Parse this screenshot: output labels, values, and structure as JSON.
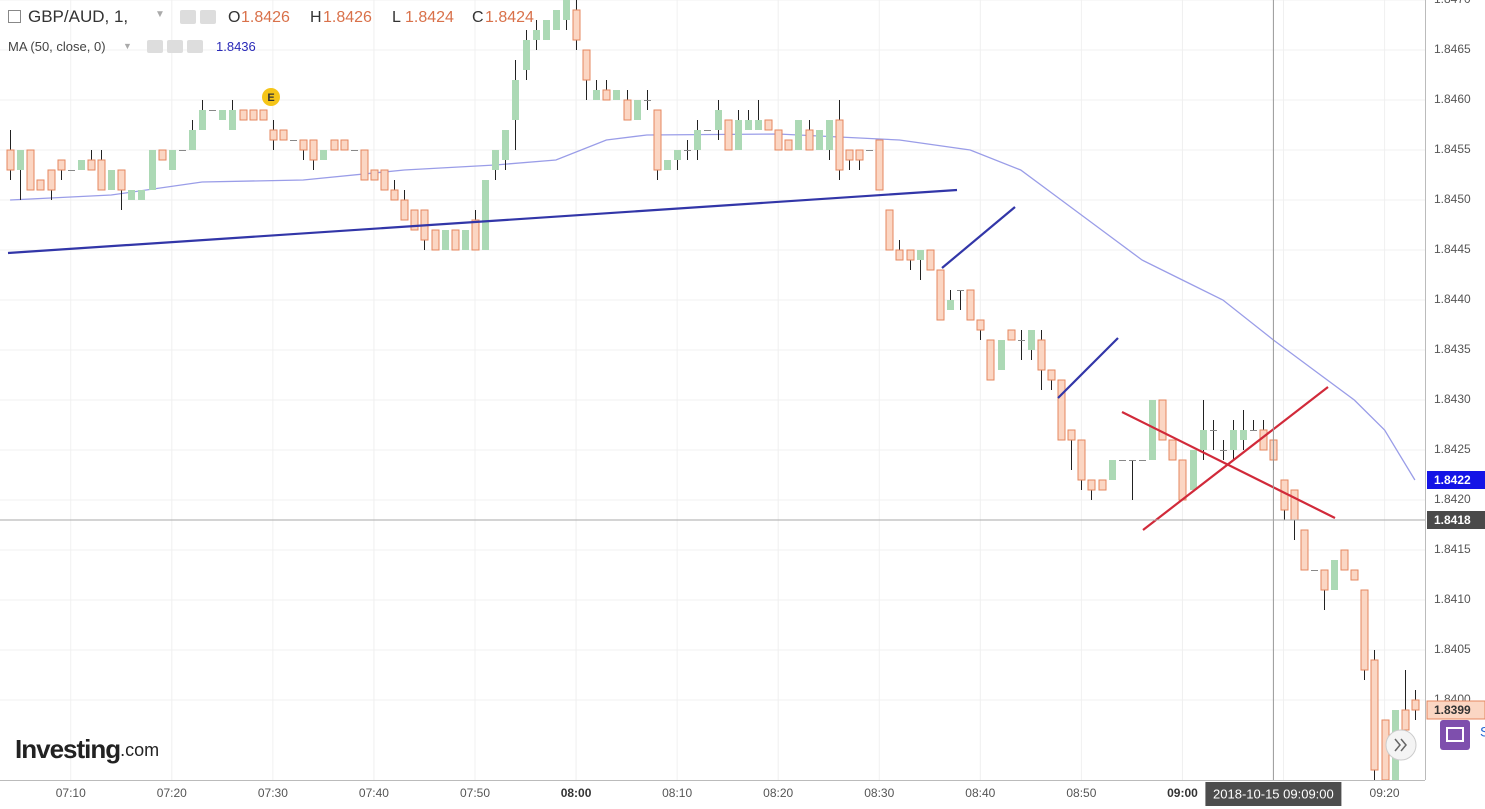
{
  "header": {
    "symbol": "GBP/AUD, 1,",
    "ohlc": [
      {
        "label": "O",
        "value": 1.8426
      },
      {
        "label": "H",
        "value": 1.8426
      },
      {
        "label": "L",
        "value": 1.8424
      },
      {
        "label": "C",
        "value": 1.8424
      }
    ],
    "event_marker": "E",
    "watermark": {
      "brand": "Investing",
      "suffix": ".com"
    },
    "widget_label": "S"
  },
  "chart_data": {
    "type": "candlestick",
    "x": [
      "07:04",
      "07:05",
      "07:06",
      "07:07",
      "07:08",
      "07:09",
      "07:10",
      "07:11",
      "07:12",
      "07:13",
      "07:14",
      "07:15",
      "07:16",
      "07:17",
      "07:18",
      "07:19",
      "07:20",
      "07:21",
      "07:22",
      "07:23",
      "07:24",
      "07:25",
      "07:26",
      "07:27",
      "07:28",
      "07:29",
      "07:30",
      "07:31",
      "07:32",
      "07:33",
      "07:34",
      "07:35",
      "07:36",
      "07:37",
      "07:38",
      "07:39",
      "07:40",
      "07:41",
      "07:42",
      "07:43",
      "07:44",
      "07:45",
      "07:46",
      "07:47",
      "07:48",
      "07:49",
      "07:50",
      "07:51",
      "07:52",
      "07:53",
      "07:54",
      "07:55",
      "07:56",
      "07:57",
      "07:58",
      "07:59",
      "08:00",
      "08:01",
      "08:02",
      "08:03",
      "08:04",
      "08:05",
      "08:06",
      "08:07",
      "08:08",
      "08:09",
      "08:10",
      "08:11",
      "08:12",
      "08:13",
      "08:14",
      "08:15",
      "08:16",
      "08:17",
      "08:18",
      "08:19",
      "08:20",
      "08:21",
      "08:22",
      "08:23",
      "08:24",
      "08:25",
      "08:26",
      "08:27",
      "08:28",
      "08:29",
      "08:30",
      "08:31",
      "08:32",
      "08:33",
      "08:34",
      "08:35",
      "08:36",
      "08:37",
      "08:38",
      "08:39",
      "08:40",
      "08:41",
      "08:42",
      "08:43",
      "08:44",
      "08:45",
      "08:46",
      "08:47",
      "08:48",
      "08:49",
      "08:50",
      "08:51",
      "08:52",
      "08:53",
      "08:54",
      "08:55",
      "08:56",
      "08:57",
      "08:58",
      "08:59",
      "09:00",
      "09:01",
      "09:02",
      "09:03",
      "09:04",
      "09:05",
      "09:06",
      "09:07",
      "09:08",
      "09:09",
      "09:10",
      "09:11",
      "09:12",
      "09:13",
      "09:14",
      "09:15",
      "09:16",
      "09:17",
      "09:18",
      "09:19",
      "09:20",
      "09:21",
      "09:22",
      "09:23"
    ],
    "open": [
      1.8455,
      1.8453,
      1.8455,
      1.8452,
      1.8453,
      1.8454,
      1.8453,
      1.8453,
      1.8454,
      1.8454,
      1.8451,
      1.8453,
      1.845,
      1.845,
      1.8451,
      1.8455,
      1.8453,
      1.8455,
      1.8455,
      1.8457,
      1.8459,
      1.8458,
      1.8457,
      1.8459,
      1.8459,
      1.8459,
      1.8457,
      1.8457,
      1.8456,
      1.8456,
      1.8456,
      1.8454,
      1.8456,
      1.8456,
      1.8455,
      1.8455,
      1.8453,
      1.8453,
      1.8451,
      1.845,
      1.8449,
      1.8449,
      1.8447,
      1.8445,
      1.8447,
      1.8445,
      1.8448,
      1.8445,
      1.8453,
      1.8454,
      1.8458,
      1.8463,
      1.8466,
      1.8466,
      1.8467,
      1.8468,
      1.8469,
      1.8465,
      1.846,
      1.8461,
      1.846,
      1.846,
      1.8458,
      1.846,
      1.8459,
      1.8453,
      1.8454,
      1.8455,
      1.8455,
      1.8457,
      1.8457,
      1.8458,
      1.8455,
      1.8457,
      1.8457,
      1.8458,
      1.8457,
      1.8456,
      1.8455,
      1.8457,
      1.8455,
      1.8455,
      1.8458,
      1.8455,
      1.8455,
      1.8455,
      1.8456,
      1.8449,
      1.8445,
      1.8445,
      1.8444,
      1.8445,
      1.8443,
      1.8439,
      1.8441,
      1.8441,
      1.8438,
      1.8436,
      1.8433,
      1.8437,
      1.8436,
      1.8435,
      1.8436,
      1.8433,
      1.8432,
      1.8427,
      1.8426,
      1.8422,
      1.8422,
      1.8422,
      1.8424,
      1.8424,
      1.8424,
      1.8424,
      1.843,
      1.8426,
      1.8424,
      1.8421,
      1.8425,
      1.8427,
      1.8425,
      1.8425,
      1.8426,
      1.8427,
      1.8427,
      1.8426,
      1.8422,
      1.8421,
      1.8417,
      1.8413,
      1.8413,
      1.8411,
      1.8415,
      1.8413,
      1.8411,
      1.8404,
      1.8398,
      1.8392,
      1.8399,
      1.84
    ],
    "high": [
      1.8457,
      1.8455,
      1.8455,
      1.8452,
      1.8453,
      1.8454,
      1.8453,
      1.8454,
      1.8455,
      1.8455,
      1.8453,
      1.8453,
      1.8451,
      1.8451,
      1.8455,
      1.8455,
      1.8455,
      1.8455,
      1.8458,
      1.846,
      1.8459,
      1.8459,
      1.846,
      1.8459,
      1.8459,
      1.8459,
      1.8458,
      1.8457,
      1.8456,
      1.8456,
      1.8456,
      1.8455,
      1.8456,
      1.8456,
      1.8455,
      1.8455,
      1.8453,
      1.8453,
      1.8452,
      1.8451,
      1.8449,
      1.8449,
      1.8447,
      1.8447,
      1.8447,
      1.8447,
      1.8449,
      1.8452,
      1.8455,
      1.8457,
      1.8464,
      1.8467,
      1.8468,
      1.8468,
      1.8469,
      1.847,
      1.847,
      1.8465,
      1.8462,
      1.8462,
      1.8461,
      1.8461,
      1.846,
      1.8461,
      1.8459,
      1.8454,
      1.8455,
      1.8456,
      1.8458,
      1.8457,
      1.846,
      1.8458,
      1.8459,
      1.8459,
      1.846,
      1.8458,
      1.8457,
      1.8456,
      1.8458,
      1.8458,
      1.8457,
      1.8458,
      1.846,
      1.8455,
      1.8455,
      1.8455,
      1.8456,
      1.8449,
      1.8446,
      1.8445,
      1.8445,
      1.8445,
      1.8443,
      1.8441,
      1.8441,
      1.8441,
      1.8438,
      1.8436,
      1.8436,
      1.8437,
      1.8437,
      1.8437,
      1.8437,
      1.8433,
      1.8432,
      1.8427,
      1.8426,
      1.8422,
      1.8422,
      1.8424,
      1.8424,
      1.8424,
      1.8424,
      1.843,
      1.843,
      1.8426,
      1.8424,
      1.8425,
      1.843,
      1.8428,
      1.8426,
      1.8428,
      1.8429,
      1.8428,
      1.8428,
      1.8426,
      1.8422,
      1.8421,
      1.8417,
      1.8413,
      1.8413,
      1.8414,
      1.8415,
      1.8413,
      1.8411,
      1.8405,
      1.8398,
      1.8399,
      1.8403,
      1.8401
    ],
    "low": [
      1.8452,
      1.845,
      1.8451,
      1.8451,
      1.845,
      1.8452,
      1.8453,
      1.8453,
      1.8453,
      1.8451,
      1.8451,
      1.8449,
      1.845,
      1.845,
      1.8451,
      1.8454,
      1.8453,
      1.8455,
      1.8455,
      1.8457,
      1.8459,
      1.8458,
      1.8457,
      1.8458,
      1.8458,
      1.8458,
      1.8455,
      1.8456,
      1.8456,
      1.8454,
      1.8453,
      1.8454,
      1.8455,
      1.8455,
      1.8455,
      1.8452,
      1.8452,
      1.8451,
      1.845,
      1.8448,
      1.8447,
      1.8445,
      1.8445,
      1.8445,
      1.8445,
      1.8445,
      1.8445,
      1.8445,
      1.8452,
      1.8453,
      1.8455,
      1.8462,
      1.8465,
      1.8466,
      1.8467,
      1.8467,
      1.8465,
      1.846,
      1.846,
      1.846,
      1.846,
      1.8458,
      1.8458,
      1.8459,
      1.8452,
      1.8453,
      1.8453,
      1.8454,
      1.8454,
      1.8457,
      1.8456,
      1.8455,
      1.8455,
      1.8457,
      1.8457,
      1.8457,
      1.8455,
      1.8455,
      1.8455,
      1.8455,
      1.8455,
      1.8454,
      1.8452,
      1.8453,
      1.8453,
      1.8455,
      1.8451,
      1.8445,
      1.8444,
      1.8443,
      1.8442,
      1.8443,
      1.8438,
      1.8439,
      1.8439,
      1.8438,
      1.8436,
      1.8432,
      1.8433,
      1.8436,
      1.8434,
      1.8434,
      1.8431,
      1.8431,
      1.8426,
      1.8423,
      1.8421,
      1.842,
      1.8421,
      1.8422,
      1.8424,
      1.842,
      1.8424,
      1.8424,
      1.8426,
      1.8424,
      1.842,
      1.8421,
      1.8424,
      1.8425,
      1.8424,
      1.8424,
      1.8425,
      1.8427,
      1.8425,
      1.8423,
      1.8418,
      1.8416,
      1.8413,
      1.8413,
      1.8409,
      1.8411,
      1.8413,
      1.8412,
      1.8402,
      1.8392,
      1.8392,
      1.8392,
      1.8397,
      1.8398
    ],
    "close": [
      1.8453,
      1.8455,
      1.8451,
      1.8451,
      1.8451,
      1.8453,
      1.8453,
      1.8454,
      1.8453,
      1.8451,
      1.8453,
      1.8451,
      1.8451,
      1.8451,
      1.8455,
      1.8454,
      1.8455,
      1.8455,
      1.8457,
      1.8459,
      1.8459,
      1.8459,
      1.8459,
      1.8458,
      1.8458,
      1.8458,
      1.8456,
      1.8456,
      1.8456,
      1.8455,
      1.8454,
      1.8455,
      1.8455,
      1.8455,
      1.8455,
      1.8452,
      1.8452,
      1.8451,
      1.845,
      1.8448,
      1.8447,
      1.8446,
      1.8445,
      1.8447,
      1.8445,
      1.8447,
      1.8445,
      1.8452,
      1.8455,
      1.8457,
      1.8462,
      1.8466,
      1.8467,
      1.8468,
      1.8469,
      1.847,
      1.8466,
      1.8462,
      1.8461,
      1.846,
      1.8461,
      1.8458,
      1.846,
      1.846,
      1.8453,
      1.8454,
      1.8455,
      1.8455,
      1.8457,
      1.8457,
      1.8459,
      1.8455,
      1.8458,
      1.8458,
      1.8458,
      1.8457,
      1.8455,
      1.8455,
      1.8458,
      1.8455,
      1.8457,
      1.8458,
      1.8453,
      1.8454,
      1.8454,
      1.8455,
      1.8451,
      1.8445,
      1.8444,
      1.8444,
      1.8445,
      1.8443,
      1.8438,
      1.844,
      1.8441,
      1.8438,
      1.8437,
      1.8432,
      1.8436,
      1.8436,
      1.8436,
      1.8437,
      1.8433,
      1.8432,
      1.8426,
      1.8426,
      1.8422,
      1.8421,
      1.8421,
      1.8424,
      1.8424,
      1.8424,
      1.8424,
      1.843,
      1.8426,
      1.8424,
      1.842,
      1.8425,
      1.8427,
      1.8427,
      1.8425,
      1.8427,
      1.8427,
      1.8427,
      1.8425,
      1.8424,
      1.8419,
      1.8418,
      1.8413,
      1.8413,
      1.8411,
      1.8414,
      1.8413,
      1.8412,
      1.8403,
      1.8393,
      1.8392,
      1.8399,
      1.8397,
      1.8399
    ],
    "up_color": "#acd9b5",
    "down_color": "#fbd6c3",
    "down_border": "#e4875f",
    "wick_color": "#222222",
    "ma": {
      "name": "MA (50, close, 0)",
      "legend_value": 1.8436,
      "color": "#9a9de8",
      "x": [
        "07:04",
        "07:14",
        "07:23",
        "07:33",
        "07:43",
        "07:52",
        "07:58",
        "08:03",
        "08:07",
        "08:20",
        "08:32",
        "08:39",
        "08:44",
        "08:48",
        "08:52",
        "08:56",
        "09:00",
        "09:04",
        "09:09",
        "09:13",
        "09:17",
        "09:20",
        "09:23"
      ],
      "values": [
        1.845,
        1.84505,
        1.84518,
        1.8452,
        1.8453,
        1.84535,
        1.8454,
        1.8456,
        1.84565,
        1.84566,
        1.8456,
        1.8455,
        1.8453,
        1.845,
        1.8447,
        1.8444,
        1.8442,
        1.844,
        1.8436,
        1.8433,
        1.843,
        1.8427,
        1.8422
      ]
    },
    "xlim": [
      "07:03",
      "09:24"
    ],
    "xticks": [
      "07:10",
      "07:20",
      "07:30",
      "07:40",
      "07:50",
      "08:00",
      "08:10",
      "08:20",
      "08:30",
      "08:40",
      "08:50",
      "09:00",
      "09:10",
      "09:20"
    ],
    "ylim": [
      1.8392,
      1.847
    ],
    "yticks": [
      {
        "value": 1.847,
        "label": "1.8470"
      },
      1.8465,
      {
        "value": 1.846,
        "label": "1.8460"
      },
      1.8455,
      {
        "value": 1.845,
        "label": "1.8450"
      },
      1.8445,
      {
        "value": 1.844,
        "label": "1.8440"
      },
      1.8435,
      {
        "value": 1.843,
        "label": "1.8430"
      },
      1.8425,
      {
        "value": 1.842,
        "label": "1.8420"
      },
      1.8415,
      {
        "value": 1.841,
        "label": "1.8410"
      },
      1.8405,
      {
        "value": 1.84,
        "label": "1.8400"
      }
    ],
    "grid": true,
    "crosshair": {
      "label": "2018-10-15 09:09:00",
      "price": 1.8418
    }
  }
}
